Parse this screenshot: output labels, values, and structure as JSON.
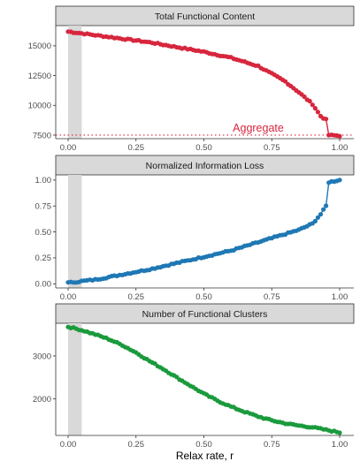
{
  "xlabel": "Relax rate, r",
  "x_ticks": [
    "0.00",
    "0.25",
    "0.50",
    "0.75",
    "1.00"
  ],
  "chart_data": [
    {
      "type": "line",
      "title": "Total Functional Content",
      "color": "#d7263d",
      "xlim": [
        0,
        1
      ],
      "ylim": [
        7200,
        16700
      ],
      "y_ticks": [
        7500,
        10000,
        12500,
        15000
      ],
      "y_tick_labels": [
        "7500",
        "10000",
        "12500",
        "15000"
      ],
      "highlight_band": [
        0,
        0.05
      ],
      "reference_line": {
        "y": 7500,
        "label": "Aggregate",
        "style": "dotted",
        "color": "#d7263d"
      },
      "x": [
        0,
        0.1,
        0.2,
        0.3,
        0.4,
        0.5,
        0.6,
        0.7,
        0.8,
        0.85,
        0.9,
        0.93,
        0.95,
        0.96,
        1.0
      ],
      "values": [
        16200,
        15900,
        15600,
        15300,
        14900,
        14500,
        14000,
        13300,
        12000,
        11100,
        10100,
        9100,
        8800,
        7500,
        7450
      ]
    },
    {
      "type": "line",
      "title": "Normalized Information Loss",
      "color": "#1f78b4",
      "xlim": [
        0,
        1
      ],
      "ylim": [
        -0.04,
        1.05
      ],
      "y_ticks": [
        0,
        0.25,
        0.5,
        0.75,
        1.0
      ],
      "y_tick_labels": [
        "0.00",
        "0.25",
        "0.50",
        "0.75",
        "1.00"
      ],
      "highlight_band": [
        0,
        0.05
      ],
      "x": [
        0,
        0.1,
        0.2,
        0.3,
        0.4,
        0.5,
        0.6,
        0.7,
        0.8,
        0.85,
        0.9,
        0.93,
        0.95,
        0.96,
        1.0
      ],
      "values": [
        0.01,
        0.04,
        0.09,
        0.14,
        0.2,
        0.26,
        0.32,
        0.4,
        0.48,
        0.52,
        0.58,
        0.67,
        0.75,
        0.98,
        1.0
      ]
    },
    {
      "type": "line",
      "title": "Number of Functional Clusters",
      "color": "#1a9a3c",
      "xlim": [
        0,
        1
      ],
      "ylim": [
        1150,
        3760
      ],
      "y_ticks": [
        2000,
        3000
      ],
      "y_tick_labels": [
        "2000",
        "3000"
      ],
      "highlight_band": [
        0,
        0.05
      ],
      "x": [
        0,
        0.05,
        0.1,
        0.15,
        0.2,
        0.25,
        0.3,
        0.35,
        0.4,
        0.45,
        0.5,
        0.55,
        0.6,
        0.65,
        0.7,
        0.75,
        0.8,
        0.85,
        0.9,
        0.95,
        1.0
      ],
      "values": [
        3680,
        3600,
        3500,
        3390,
        3250,
        3080,
        2880,
        2700,
        2500,
        2310,
        2120,
        1960,
        1820,
        1700,
        1590,
        1500,
        1430,
        1380,
        1340,
        1280,
        1220
      ]
    }
  ]
}
